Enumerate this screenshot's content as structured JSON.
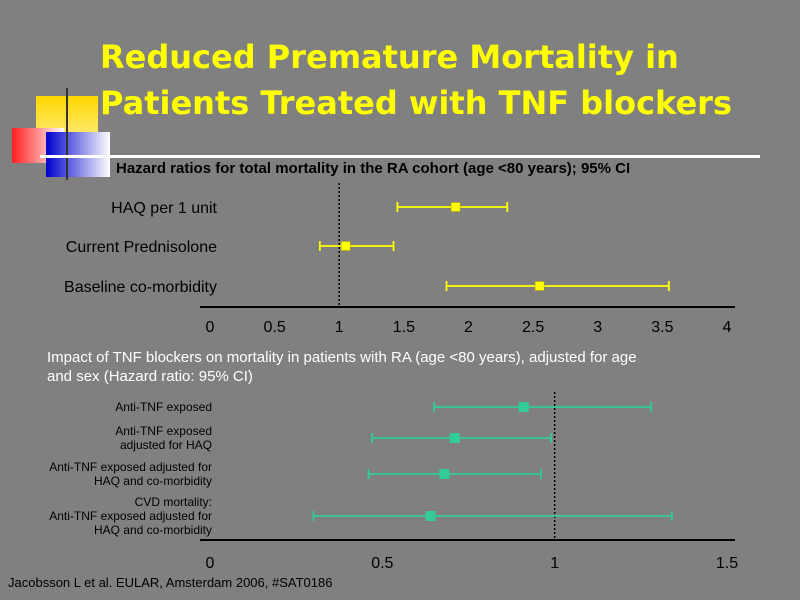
{
  "slide": {
    "title_line1": "Reduced Premature Mortality in",
    "title_line2": "Patients Treated with TNF blockers",
    "citation": "Jacobsson L et al. EULAR, Amsterdam 2006, #SAT0186"
  },
  "colors": {
    "background": "#808080",
    "title": "#ffff00",
    "chart1_marker": "#ffff00",
    "chart2_marker": "#33cc99"
  },
  "chart_data": [
    {
      "type": "forest",
      "title": "Hazard ratios for total mortality in the RA cohort (age <80 years); 95% CI",
      "xlim": [
        0,
        4
      ],
      "xticks": [
        "0",
        "0.5",
        "1",
        "1.5",
        "2",
        "2.5",
        "3",
        "3.5",
        "4"
      ],
      "reference_line": 1,
      "rows": [
        {
          "label": "HAQ per 1 unit",
          "estimate": 1.9,
          "ci": [
            1.45,
            2.3
          ]
        },
        {
          "label": "Current Prednisolone",
          "estimate": 1.05,
          "ci": [
            0.85,
            1.42
          ]
        },
        {
          "label": "Baseline co-morbidity",
          "estimate": 2.55,
          "ci": [
            1.83,
            3.55
          ]
        }
      ]
    },
    {
      "type": "forest",
      "title_line1": "Impact of TNF blockers on mortality in patients with RA (age <80 years),  adjusted for age",
      "title_line2": "and sex (Hazard ratio: 95% CI)",
      "xlim": [
        0,
        1.5
      ],
      "xticks": [
        "0",
        "0.5",
        "1",
        "1.5"
      ],
      "reference_line": 1,
      "rows": [
        {
          "label_lines": [
            "Anti-TNF exposed"
          ],
          "estimate": 0.91,
          "ci": [
            0.65,
            1.28
          ]
        },
        {
          "label_lines": [
            "Anti-TNF exposed",
            "adjusted for HAQ"
          ],
          "estimate": 0.71,
          "ci": [
            0.47,
            0.99
          ]
        },
        {
          "label_lines": [
            "Anti-TNF exposed adjusted for",
            "HAQ and co-morbidity"
          ],
          "estimate": 0.68,
          "ci": [
            0.46,
            0.96
          ]
        },
        {
          "label_lines": [
            "CVD mortality:",
            "Anti-TNF exposed adjusted for",
            "HAQ and co-morbidity"
          ],
          "estimate": 0.64,
          "ci": [
            0.3,
            1.34
          ]
        }
      ]
    }
  ]
}
